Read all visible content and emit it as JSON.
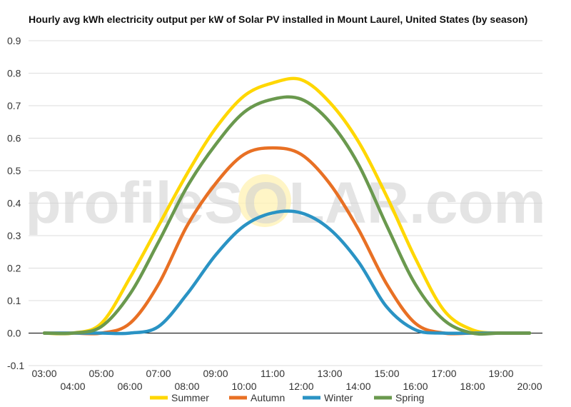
{
  "chart_data": {
    "type": "line",
    "title": "Hourly avg kWh electricity output per kW of Solar PV installed in Mount Laurel, United States (by season)",
    "xlabel": "",
    "ylabel": "",
    "x": [
      "03:00",
      "04:00",
      "05:00",
      "06:00",
      "07:00",
      "08:00",
      "09:00",
      "10:00",
      "11:00",
      "12:00",
      "13:00",
      "14:00",
      "15:00",
      "16:00",
      "17:00",
      "18:00",
      "19:00",
      "20:00"
    ],
    "ylim": [
      -0.1,
      0.9
    ],
    "yticks": [
      -0.1,
      0.0,
      0.1,
      0.2,
      0.3,
      0.4,
      0.5,
      0.6,
      0.7,
      0.8,
      0.9
    ],
    "ytick_labels": [
      "-0.1",
      "0.0",
      "0.1",
      "0.2",
      "0.3",
      "0.4",
      "0.5",
      "0.6",
      "0.7",
      "0.8",
      "0.9"
    ],
    "grid": true,
    "legend_position": "bottom",
    "series": [
      {
        "name": "Summer",
        "color": "#FFD700",
        "values": [
          0.0,
          0.0,
          0.03,
          0.17,
          0.33,
          0.49,
          0.63,
          0.73,
          0.77,
          0.78,
          0.71,
          0.59,
          0.42,
          0.23,
          0.07,
          0.01,
          0.0,
          0.0
        ]
      },
      {
        "name": "Autumn",
        "color": "#E87024",
        "values": [
          0.0,
          0.0,
          0.0,
          0.03,
          0.15,
          0.33,
          0.46,
          0.55,
          0.57,
          0.55,
          0.46,
          0.32,
          0.15,
          0.03,
          0.0,
          0.0,
          0.0,
          0.0
        ]
      },
      {
        "name": "Winter",
        "color": "#2A93C4",
        "values": [
          0.0,
          0.0,
          0.0,
          0.0,
          0.02,
          0.12,
          0.24,
          0.33,
          0.37,
          0.37,
          0.32,
          0.22,
          0.08,
          0.01,
          0.0,
          0.0,
          0.0,
          0.0
        ]
      },
      {
        "name": "Spring",
        "color": "#6A994E",
        "values": [
          0.0,
          0.0,
          0.02,
          0.12,
          0.28,
          0.45,
          0.58,
          0.68,
          0.72,
          0.72,
          0.65,
          0.52,
          0.33,
          0.15,
          0.04,
          0.0,
          0.0,
          0.0
        ]
      }
    ]
  },
  "watermark": {
    "text": "profileSOLAR.com"
  }
}
